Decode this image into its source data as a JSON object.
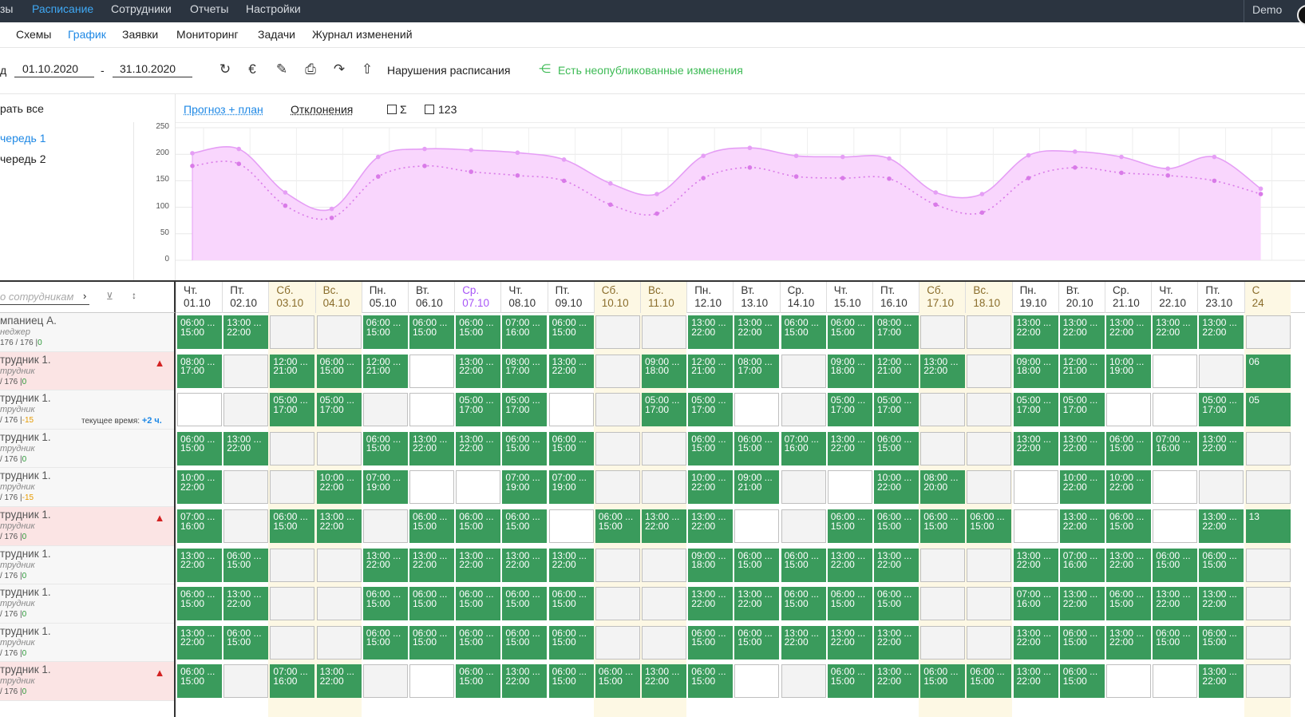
{
  "topnav": {
    "items": [
      "зы",
      "Расписание",
      "Сотрудники",
      "Отчеты",
      "Настройки"
    ],
    "active": 1,
    "user": "Demo"
  },
  "subnav": {
    "items": [
      "Схемы",
      "График",
      "Заявки",
      "Мониторинг",
      "Задачи",
      "Журнал изменений"
    ],
    "active": 1
  },
  "toolbar": {
    "period_label": "д",
    "date_from": "01.10.2020",
    "separator": "-",
    "date_to": "31.10.2020",
    "icons": [
      "refresh-icon",
      "currency-icon",
      "pencil-icon",
      "print-icon",
      "redo-icon",
      "upload-icon"
    ],
    "violations": "Нарушения расписания",
    "unpublished": "Есть неопубликованные изменения"
  },
  "left_panel": {
    "select_all": "рать все",
    "queues": [
      "чередь 1",
      "чередь 2"
    ],
    "selected_queue": 0
  },
  "chart_header": {
    "tab_forecast": "Прогноз + план",
    "tab_deviations": "Отклонения",
    "check_sum": "Σ",
    "check_123": "123"
  },
  "chart_data": {
    "type": "area",
    "ylim": [
      0,
      250
    ],
    "yticks": [
      0,
      50,
      100,
      150,
      200,
      250
    ],
    "x": [
      "01.10",
      "02.10",
      "03.10",
      "04.10",
      "05.10",
      "06.10",
      "07.10",
      "08.10",
      "09.10",
      "10.10",
      "11.10",
      "12.10",
      "13.10",
      "14.10",
      "15.10",
      "16.10",
      "17.10",
      "18.10",
      "19.10",
      "20.10",
      "21.10",
      "22.10",
      "23.10",
      "24.10"
    ],
    "series": [
      {
        "style": "solid",
        "color": "#e59ef5",
        "values": [
          202,
          210,
          128,
          97,
          195,
          210,
          208,
          203,
          190,
          145,
          125,
          197,
          212,
          197,
          195,
          192,
          128,
          125,
          198,
          205,
          195,
          173,
          195,
          135
        ]
      },
      {
        "style": "dotted",
        "color": "#d97ae8",
        "values": [
          178,
          182,
          103,
          80,
          158,
          178,
          167,
          160,
          150,
          105,
          88,
          155,
          175,
          158,
          155,
          154,
          105,
          90,
          155,
          175,
          165,
          160,
          150,
          125
        ]
      }
    ],
    "fill": "#f9d6fd",
    "grid": true
  },
  "employee_filter": {
    "placeholder": "о сотрудникам"
  },
  "days": [
    {
      "dow": "Чт.",
      "date": "01.10",
      "type": "normal"
    },
    {
      "dow": "Пт.",
      "date": "02.10",
      "type": "normal"
    },
    {
      "dow": "Сб.",
      "date": "03.10",
      "type": "weekend"
    },
    {
      "dow": "Вс.",
      "date": "04.10",
      "type": "weekend"
    },
    {
      "dow": "Пн.",
      "date": "05.10",
      "type": "normal"
    },
    {
      "dow": "Вт.",
      "date": "06.10",
      "type": "normal"
    },
    {
      "dow": "Ср.",
      "date": "07.10",
      "type": "today"
    },
    {
      "dow": "Чт.",
      "date": "08.10",
      "type": "normal"
    },
    {
      "dow": "Пт.",
      "date": "09.10",
      "type": "normal"
    },
    {
      "dow": "Сб.",
      "date": "10.10",
      "type": "weekend"
    },
    {
      "dow": "Вс.",
      "date": "11.10",
      "type": "weekend"
    },
    {
      "dow": "Пн.",
      "date": "12.10",
      "type": "normal"
    },
    {
      "dow": "Вт.",
      "date": "13.10",
      "type": "normal"
    },
    {
      "dow": "Ср.",
      "date": "14.10",
      "type": "normal"
    },
    {
      "dow": "Чт.",
      "date": "15.10",
      "type": "normal"
    },
    {
      "dow": "Пт.",
      "date": "16.10",
      "type": "normal"
    },
    {
      "dow": "Сб.",
      "date": "17.10",
      "type": "weekend"
    },
    {
      "dow": "Вс.",
      "date": "18.10",
      "type": "weekend"
    },
    {
      "dow": "Пн.",
      "date": "19.10",
      "type": "normal"
    },
    {
      "dow": "Вт.",
      "date": "20.10",
      "type": "normal"
    },
    {
      "dow": "Ср.",
      "date": "21.10",
      "type": "normal"
    },
    {
      "dow": "Чт.",
      "date": "22.10",
      "type": "normal"
    },
    {
      "dow": "Пт.",
      "date": "23.10",
      "type": "normal"
    },
    {
      "dow": "С",
      "date": "24",
      "type": "weekend"
    }
  ],
  "current_time": {
    "label": "текущее время:",
    "value": "+2 ч."
  },
  "employees": [
    {
      "name": "мпаниец А.",
      "role": "неджер",
      "hours": "176 / 176 |",
      "delta": "0",
      "delta_color": "g",
      "alert": false,
      "shifts": [
        "06:00 ...\n15:00",
        "13:00 ...\n22:00",
        "",
        "",
        "06:00 ...\n15:00",
        "06:00 ...\n15:00",
        "06:00 ...\n15:00",
        "07:00 ...\n16:00",
        "06:00 ...\n15:00",
        "",
        "",
        "13:00 ...\n22:00",
        "13:00 ...\n22:00",
        "06:00 ...\n15:00",
        "06:00 ...\n15:00",
        "08:00 ...\n17:00",
        "",
        "",
        "13:00 ...\n22:00",
        "13:00 ...\n22:00",
        "13:00 ...\n22:00",
        "13:00 ...\n22:00",
        "13:00 ...\n22:00",
        ""
      ]
    },
    {
      "name": "трудник 1.",
      "role": "трудник",
      "hours": "/ 176 |",
      "delta": "0",
      "delta_color": "g",
      "alert": true,
      "shifts": [
        "08:00 ...\n17:00",
        "",
        "12:00 ...\n21:00",
        "06:00 ...\n15:00",
        "12:00 ...\n21:00",
        "",
        "13:00 ...\n22:00",
        "08:00 ...\n17:00",
        "13:00 ...\n22:00",
        "",
        "09:00 ...\n18:00",
        "12:00 ...\n21:00",
        "08:00 ...\n17:00",
        "",
        "09:00 ...\n18:00",
        "12:00 ...\n21:00",
        "13:00 ...\n22:00",
        "",
        "09:00 ...\n18:00",
        "12:00 ...\n21:00",
        "10:00 ...\n19:00",
        "",
        "",
        "06"
      ]
    },
    {
      "name": "трудник 1.",
      "role": "трудник",
      "hours": "/ 176 |",
      "delta": "-15",
      "delta_color": "o",
      "alert": false,
      "current_time": true,
      "shifts": [
        "",
        "",
        "05:00 ...\n17:00",
        "05:00 ...\n17:00",
        "",
        "",
        "05:00 ...\n17:00",
        "05:00 ...\n17:00",
        "",
        "",
        "05:00 ...\n17:00",
        "05:00 ...\n17:00",
        "",
        "",
        "05:00 ...\n17:00",
        "05:00 ...\n17:00",
        "",
        "",
        "05:00 ...\n17:00",
        "05:00 ...\n17:00",
        "",
        "",
        "05:00 ...\n17:00",
        "05"
      ]
    },
    {
      "name": "трудник 1.",
      "role": "трудник",
      "hours": "/ 176 |",
      "delta": "0",
      "delta_color": "g",
      "alert": false,
      "shifts": [
        "06:00 ...\n15:00",
        "13:00 ...\n22:00",
        "",
        "",
        "06:00 ...\n15:00",
        "13:00 ...\n22:00",
        "13:00 ...\n22:00",
        "06:00 ...\n15:00",
        "06:00 ...\n15:00",
        "",
        "",
        "06:00 ...\n15:00",
        "06:00 ...\n15:00",
        "07:00 ...\n16:00",
        "13:00 ...\n22:00",
        "06:00 ...\n15:00",
        "",
        "",
        "13:00 ...\n22:00",
        "13:00 ...\n22:00",
        "06:00 ...\n15:00",
        "07:00 ...\n16:00",
        "13:00 ...\n22:00",
        ""
      ]
    },
    {
      "name": "трудник 1.",
      "role": "трудник",
      "hours": "/ 176 |",
      "delta": "-15",
      "delta_color": "o",
      "alert": false,
      "shifts": [
        "10:00 ...\n22:00",
        "",
        "",
        "10:00 ...\n22:00",
        "07:00 ...\n19:00",
        "",
        "",
        "07:00 ...\n19:00",
        "07:00 ...\n19:00",
        "",
        "",
        "10:00 ...\n22:00",
        "09:00 ...\n21:00",
        "",
        "",
        "10:00 ...\n22:00",
        "08:00 ...\n20:00",
        "",
        "",
        "10:00 ...\n22:00",
        "10:00 ...\n22:00",
        "",
        "",
        ""
      ]
    },
    {
      "name": "трудник 1.",
      "role": "трудник",
      "hours": "/ 176 |",
      "delta": "0",
      "delta_color": "g",
      "alert": true,
      "shifts": [
        "07:00 ...\n16:00",
        "",
        "06:00 ...\n15:00",
        "13:00 ...\n22:00",
        "",
        "06:00 ...\n15:00",
        "06:00 ...\n15:00",
        "06:00 ...\n15:00",
        "",
        "06:00 ...\n15:00",
        "13:00 ...\n22:00",
        "13:00 ...\n22:00",
        "",
        "",
        "06:00 ...\n15:00",
        "06:00 ...\n15:00",
        "06:00 ...\n15:00",
        "06:00 ...\n15:00",
        "",
        "13:00 ...\n22:00",
        "06:00 ...\n15:00",
        "",
        "13:00 ...\n22:00",
        "13"
      ]
    },
    {
      "name": "трудник 1.",
      "role": "трудник",
      "hours": "/ 176 |",
      "delta": "0",
      "delta_color": "g",
      "alert": false,
      "shifts": [
        "13:00 ...\n22:00",
        "06:00 ...\n15:00",
        "",
        "",
        "13:00 ...\n22:00",
        "13:00 ...\n22:00",
        "13:00 ...\n22:00",
        "13:00 ...\n22:00",
        "13:00 ...\n22:00",
        "",
        "",
        "09:00 ...\n18:00",
        "06:00 ...\n15:00",
        "06:00 ...\n15:00",
        "13:00 ...\n22:00",
        "13:00 ...\n22:00",
        "",
        "",
        "13:00 ...\n22:00",
        "07:00 ...\n16:00",
        "13:00 ...\n22:00",
        "06:00 ...\n15:00",
        "06:00 ...\n15:00",
        ""
      ]
    },
    {
      "name": "трудник 1.",
      "role": "трудник",
      "hours": "/ 176 |",
      "delta": "0",
      "delta_color": "g",
      "alert": false,
      "shifts": [
        "06:00 ...\n15:00",
        "13:00 ...\n22:00",
        "",
        "",
        "06:00 ...\n15:00",
        "06:00 ...\n15:00",
        "06:00 ...\n15:00",
        "06:00 ...\n15:00",
        "06:00 ...\n15:00",
        "",
        "",
        "13:00 ...\n22:00",
        "13:00 ...\n22:00",
        "06:00 ...\n15:00",
        "06:00 ...\n15:00",
        "06:00 ...\n15:00",
        "",
        "",
        "07:00 ...\n16:00",
        "13:00 ...\n22:00",
        "06:00 ...\n15:00",
        "13:00 ...\n22:00",
        "13:00 ...\n22:00",
        ""
      ]
    },
    {
      "name": "трудник 1.",
      "role": "трудник",
      "hours": "/ 176 |",
      "delta": "0",
      "delta_color": "g",
      "alert": false,
      "shifts": [
        "13:00 ...\n22:00",
        "06:00 ...\n15:00",
        "",
        "",
        "06:00 ...\n15:00",
        "06:00 ...\n15:00",
        "06:00 ...\n15:00",
        "06:00 ...\n15:00",
        "06:00 ...\n15:00",
        "",
        "",
        "06:00 ...\n15:00",
        "06:00 ...\n15:00",
        "13:00 ...\n22:00",
        "13:00 ...\n22:00",
        "13:00 ...\n22:00",
        "",
        "",
        "13:00 ...\n22:00",
        "06:00 ...\n15:00",
        "13:00 ...\n22:00",
        "06:00 ...\n15:00",
        "06:00 ...\n15:00",
        ""
      ]
    },
    {
      "name": "трудник 1.",
      "role": "трудник",
      "hours": "/ 176 |",
      "delta": "0",
      "delta_color": "g",
      "alert": true,
      "shifts": [
        "06:00 ...\n15:00",
        "",
        "07:00 ...\n16:00",
        "13:00 ...\n22:00",
        "",
        "",
        "06:00 ...\n15:00",
        "13:00 ...\n22:00",
        "06:00 ...\n15:00",
        "06:00 ...\n15:00",
        "13:00 ...\n22:00",
        "06:00 ...\n15:00",
        "",
        "",
        "06:00 ...\n15:00",
        "13:00 ...\n22:00",
        "06:00 ...\n15:00",
        "06:00 ...\n15:00",
        "13:00 ...\n22:00",
        "06:00 ...\n15:00",
        "",
        "",
        "13:00 ...\n22:00",
        ""
      ]
    }
  ]
}
